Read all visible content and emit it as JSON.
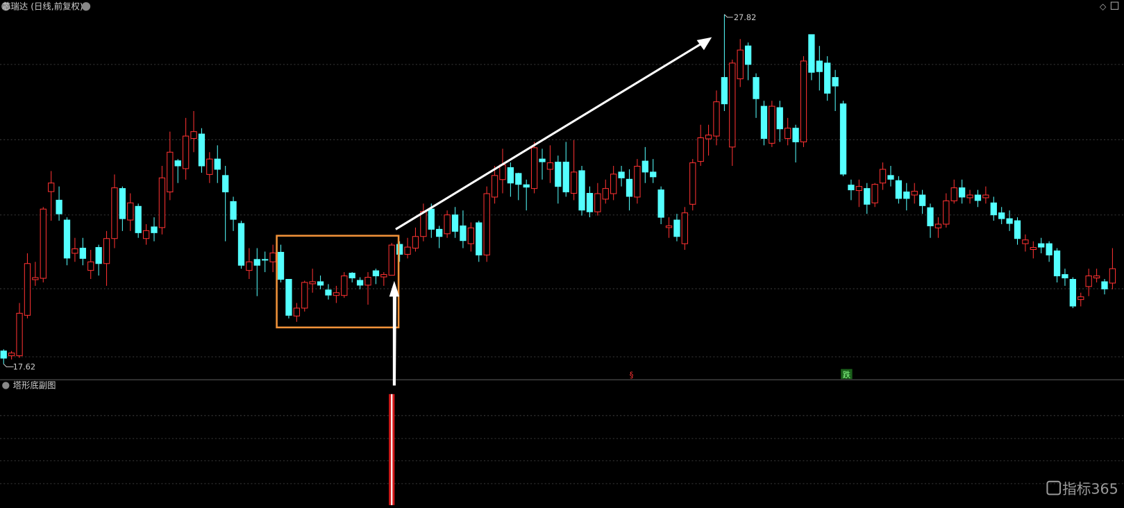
{
  "chart_data": {
    "type": "candlestick",
    "title": "芯瑞达 (日线,前复权)",
    "up_color": "#ff3232",
    "down_color": "#54ffff",
    "ylim": [
      17.16,
      28.24
    ],
    "min_label": 17.62,
    "max_label": 27.82,
    "ohlc": [
      [
        18.0,
        18.05,
        17.62,
        17.79
      ],
      [
        17.86,
        18.0,
        17.75,
        17.94
      ],
      [
        17.86,
        19.4,
        17.8,
        19.1
      ],
      [
        19.04,
        20.85,
        18.95,
        20.55
      ],
      [
        20.08,
        20.6,
        19.9,
        20.14
      ],
      [
        20.12,
        22.2,
        20.0,
        22.14
      ],
      [
        22.65,
        23.25,
        21.8,
        22.9
      ],
      [
        22.4,
        22.8,
        21.8,
        22.0
      ],
      [
        21.82,
        21.9,
        20.5,
        20.71
      ],
      [
        20.85,
        21.3,
        20.6,
        20.98
      ],
      [
        21.0,
        21.3,
        20.5,
        20.7
      ],
      [
        20.35,
        20.95,
        20.1,
        20.6
      ],
      [
        21.02,
        21.1,
        20.2,
        20.55
      ],
      [
        20.55,
        21.5,
        19.9,
        21.28
      ],
      [
        21.28,
        23.15,
        21.0,
        22.76
      ],
      [
        22.74,
        22.8,
        21.5,
        21.86
      ],
      [
        21.82,
        22.6,
        21.5,
        22.32
      ],
      [
        22.22,
        22.3,
        21.3,
        21.45
      ],
      [
        21.28,
        21.7,
        21.1,
        21.51
      ],
      [
        21.62,
        21.9,
        21.2,
        21.45
      ],
      [
        21.6,
        23.4,
        21.4,
        23.05
      ],
      [
        22.64,
        24.4,
        22.4,
        23.8
      ],
      [
        23.55,
        23.6,
        22.9,
        23.4
      ],
      [
        23.32,
        24.8,
        23.0,
        24.27
      ],
      [
        24.2,
        25.0,
        23.8,
        24.4
      ],
      [
        24.33,
        24.5,
        23.2,
        23.4
      ],
      [
        23.15,
        23.8,
        22.9,
        23.6
      ],
      [
        23.6,
        24.0,
        22.9,
        23.3
      ],
      [
        23.12,
        23.4,
        21.2,
        22.64
      ],
      [
        22.36,
        22.5,
        21.5,
        21.84
      ],
      [
        21.72,
        21.8,
        20.4,
        20.5
      ],
      [
        20.35,
        21.0,
        20.1,
        20.6
      ],
      [
        20.67,
        21.0,
        19.6,
        20.5
      ],
      [
        20.67,
        20.9,
        20.3,
        20.65
      ],
      [
        20.6,
        21.1,
        20.3,
        20.86
      ],
      [
        20.88,
        21.1,
        20.0,
        20.09
      ],
      [
        20.09,
        20.1,
        18.95,
        19.04
      ],
      [
        19.02,
        19.4,
        18.85,
        19.25
      ],
      [
        19.25,
        20.05,
        19.15,
        20.0
      ],
      [
        19.96,
        20.4,
        19.7,
        20.02
      ],
      [
        20.02,
        20.2,
        19.8,
        19.92
      ],
      [
        19.78,
        19.95,
        19.5,
        19.63
      ],
      [
        19.62,
        19.9,
        19.4,
        19.7
      ],
      [
        19.62,
        20.3,
        19.55,
        20.19
      ],
      [
        20.27,
        20.3,
        20.0,
        20.13
      ],
      [
        20.06,
        20.15,
        19.8,
        19.92
      ],
      [
        19.92,
        20.3,
        19.35,
        20.15
      ],
      [
        20.34,
        20.4,
        19.95,
        20.19
      ],
      [
        20.16,
        20.3,
        19.9,
        20.23
      ],
      [
        20.21,
        21.15,
        20.2,
        21.09
      ],
      [
        21.11,
        21.2,
        20.6,
        20.82
      ],
      [
        20.82,
        21.3,
        20.7,
        21.03
      ],
      [
        21.0,
        21.6,
        20.9,
        21.34
      ],
      [
        21.34,
        22.3,
        21.2,
        22.07
      ],
      [
        22.14,
        22.3,
        21.3,
        21.55
      ],
      [
        21.55,
        21.65,
        21.0,
        21.34
      ],
      [
        21.42,
        22.1,
        21.3,
        21.97
      ],
      [
        21.97,
        22.2,
        21.3,
        21.49
      ],
      [
        21.65,
        22.1,
        21.0,
        21.22
      ],
      [
        21.13,
        21.75,
        20.9,
        21.59
      ],
      [
        21.74,
        21.8,
        20.6,
        20.8
      ],
      [
        20.8,
        22.8,
        20.6,
        22.59
      ],
      [
        22.49,
        23.4,
        22.3,
        23.12
      ],
      [
        23.0,
        23.9,
        22.6,
        23.43
      ],
      [
        23.35,
        23.5,
        22.5,
        22.9
      ],
      [
        23.18,
        23.2,
        22.4,
        22.86
      ],
      [
        22.85,
        23.0,
        22.1,
        22.78
      ],
      [
        22.74,
        24.1,
        22.6,
        23.93
      ],
      [
        23.6,
        23.9,
        23.0,
        23.52
      ],
      [
        23.3,
        24.0,
        22.9,
        23.49
      ],
      [
        23.51,
        23.7,
        22.3,
        22.8
      ],
      [
        23.51,
        24.1,
        22.5,
        22.64
      ],
      [
        22.6,
        24.15,
        22.4,
        23.22
      ],
      [
        23.26,
        23.4,
        21.95,
        22.11
      ],
      [
        22.6,
        22.8,
        21.9,
        22.06
      ],
      [
        22.06,
        22.9,
        21.95,
        22.59
      ],
      [
        22.43,
        23.0,
        22.3,
        22.74
      ],
      [
        22.59,
        23.4,
        22.4,
        23.16
      ],
      [
        23.22,
        23.4,
        22.8,
        23.05
      ],
      [
        23.01,
        23.3,
        22.1,
        22.51
      ],
      [
        22.49,
        23.6,
        22.3,
        23.39
      ],
      [
        23.54,
        23.95,
        22.9,
        23.22
      ],
      [
        23.22,
        23.6,
        22.9,
        23.08
      ],
      [
        22.7,
        22.8,
        21.7,
        21.9
      ],
      [
        21.6,
        21.9,
        21.3,
        21.65
      ],
      [
        21.82,
        22.0,
        21.2,
        21.34
      ],
      [
        21.13,
        22.2,
        20.95,
        22.03
      ],
      [
        22.28,
        23.6,
        22.1,
        23.49
      ],
      [
        23.53,
        24.6,
        23.4,
        24.22
      ],
      [
        24.19,
        24.6,
        23.7,
        24.3
      ],
      [
        24.27,
        25.6,
        24.0,
        25.27
      ],
      [
        25.98,
        27.82,
        25.0,
        25.21
      ],
      [
        23.95,
        26.5,
        23.4,
        26.4
      ],
      [
        25.94,
        27.1,
        25.7,
        26.78
      ],
      [
        26.9,
        27.0,
        25.9,
        26.36
      ],
      [
        25.98,
        26.1,
        24.8,
        25.36
      ],
      [
        25.14,
        25.3,
        24.0,
        24.2
      ],
      [
        24.06,
        25.3,
        23.95,
        25.14
      ],
      [
        25.1,
        25.3,
        24.1,
        24.48
      ],
      [
        24.2,
        24.8,
        24.0,
        24.5
      ],
      [
        24.5,
        24.6,
        23.5,
        24.1
      ],
      [
        24.1,
        26.6,
        23.95,
        26.46
      ],
      [
        27.23,
        27.23,
        25.9,
        26.13
      ],
      [
        26.46,
        26.9,
        25.6,
        26.15
      ],
      [
        26.4,
        26.6,
        25.3,
        25.52
      ],
      [
        25.98,
        26.2,
        25.0,
        25.73
      ],
      [
        25.21,
        25.3,
        23.1,
        23.16
      ],
      [
        22.84,
        23.0,
        22.4,
        22.7
      ],
      [
        22.68,
        23.0,
        22.2,
        22.8
      ],
      [
        22.74,
        22.9,
        22.0,
        22.28
      ],
      [
        22.32,
        22.9,
        22.2,
        22.86
      ],
      [
        22.9,
        23.5,
        22.7,
        23.3
      ],
      [
        23.12,
        23.4,
        22.8,
        23.01
      ],
      [
        22.97,
        23.1,
        22.3,
        22.45
      ],
      [
        22.64,
        22.9,
        22.1,
        22.45
      ],
      [
        22.55,
        22.9,
        22.3,
        22.66
      ],
      [
        22.55,
        22.7,
        22.0,
        22.24
      ],
      [
        22.18,
        22.3,
        21.3,
        21.65
      ],
      [
        21.59,
        21.9,
        21.3,
        21.7
      ],
      [
        21.7,
        22.6,
        21.6,
        22.38
      ],
      [
        22.38,
        23.0,
        22.3,
        22.76
      ],
      [
        22.76,
        23.0,
        22.3,
        22.49
      ],
      [
        22.47,
        22.7,
        22.3,
        22.55
      ],
      [
        22.55,
        22.7,
        22.2,
        22.39
      ],
      [
        22.47,
        22.8,
        22.3,
        22.55
      ],
      [
        22.32,
        22.5,
        21.8,
        21.97
      ],
      [
        22.03,
        22.2,
        21.7,
        21.86
      ],
      [
        21.86,
        22.1,
        21.5,
        21.72
      ],
      [
        21.8,
        21.9,
        21.1,
        21.28
      ],
      [
        21.13,
        21.4,
        20.9,
        21.24
      ],
      [
        20.96,
        21.2,
        20.7,
        21.02
      ],
      [
        21.13,
        21.3,
        20.85,
        21.03
      ],
      [
        21.13,
        21.2,
        20.6,
        20.8
      ],
      [
        20.92,
        21.0,
        20.0,
        20.19
      ],
      [
        20.23,
        20.4,
        19.9,
        20.13
      ],
      [
        20.09,
        20.15,
        19.25,
        19.31
      ],
      [
        19.5,
        19.7,
        19.3,
        19.58
      ],
      [
        19.88,
        20.4,
        19.6,
        20.19
      ],
      [
        20.13,
        20.4,
        20.0,
        20.19
      ],
      [
        20.02,
        20.1,
        19.65,
        19.81
      ],
      [
        19.98,
        21.0,
        19.8,
        20.4
      ]
    ],
    "markers": [
      "§",
      "跌"
    ],
    "subchart": {
      "title": "塔形底副图",
      "signal_at": 49
    },
    "watermark": "指标365"
  }
}
